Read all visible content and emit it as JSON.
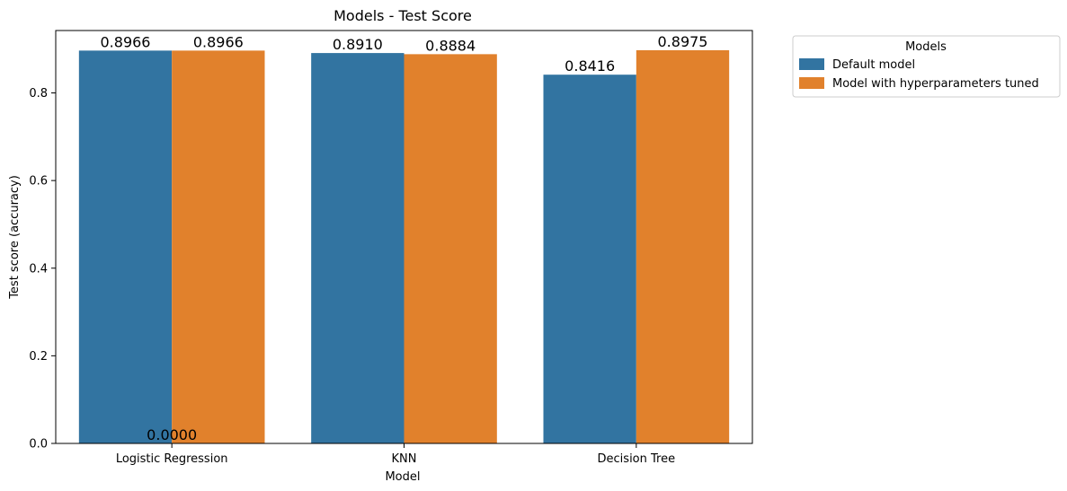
{
  "chart_data": {
    "type": "bar",
    "title": "Models - Test Score",
    "xlabel": "Model",
    "ylabel": "Test score (accuracy)",
    "categories": [
      "Logistic Regression",
      "KNN",
      "Decision Tree"
    ],
    "ylim": [
      0,
      0.9424
    ],
    "yticks": [
      0.0,
      0.2,
      0.4,
      0.6,
      0.8
    ],
    "ytick_labels": [
      "0.0",
      "0.2",
      "0.4",
      "0.6",
      "0.8"
    ],
    "grid": false,
    "legend": {
      "title": "Models",
      "placement": "outside-top-right"
    },
    "series": [
      {
        "name": "Default model",
        "color": "#3274a1",
        "values": [
          0.8966,
          0.891,
          0.8416
        ]
      },
      {
        "name": "Model with hyperparameters tuned",
        "color": "#e1812c",
        "values": [
          0.8966,
          0.8884,
          0.8975
        ]
      }
    ],
    "bar_labels": [
      {
        "text": "0.8966",
        "series": 0,
        "category": 0,
        "value": 0.8966
      },
      {
        "text": "0.8966",
        "series": 1,
        "category": 0,
        "value": 0.8966
      },
      {
        "text": "0.8910",
        "series": 0,
        "category": 1,
        "value": 0.891
      },
      {
        "text": "0.8884",
        "series": 1,
        "category": 1,
        "value": 0.8884
      },
      {
        "text": "0.8416",
        "series": 0,
        "category": 2,
        "value": 0.8416
      },
      {
        "text": "0.8975",
        "series": 1,
        "category": 2,
        "value": 0.8975
      },
      {
        "text": "0.0000",
        "category": 0,
        "value": 0.0
      }
    ]
  }
}
